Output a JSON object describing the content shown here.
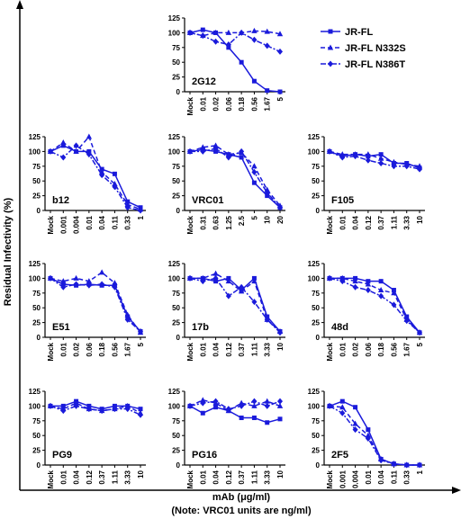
{
  "y_label": "Residual Infectivity (%)",
  "x_label": "mAb (μg/ml)",
  "note": "(Note:  VRC01 units are ng/ml)",
  "chart_data": [
    {
      "type": "line",
      "title": "2G12",
      "categories": [
        "Mock",
        "0.01",
        "0.02",
        "0.06",
        "0.18",
        "0.56",
        "1.67",
        "5"
      ],
      "ylim": [
        0,
        125
      ],
      "yticks": [
        0,
        25,
        50,
        75,
        100,
        125
      ],
      "series": [
        {
          "name": "JR-FL",
          "color": "#1a1adb",
          "values": [
            100,
            105,
            100,
            75,
            50,
            18,
            2,
            0
          ]
        },
        {
          "name": "JR-FL N332S",
          "color": "#1a1adb",
          "values": [
            100,
            95,
            100,
            100,
            100,
            103,
            102,
            98
          ]
        },
        {
          "name": "JR-FL N386T",
          "color": "#1a1adb",
          "values": [
            100,
            95,
            85,
            80,
            100,
            88,
            78,
            68
          ]
        }
      ]
    },
    {
      "type": "line",
      "title": "b12",
      "categories": [
        "Mock",
        "0.001",
        "0.004",
        "0.01",
        "0.04",
        "0.11",
        "0.33",
        "1"
      ],
      "ylim": [
        0,
        125
      ],
      "yticks": [
        0,
        25,
        50,
        75,
        100,
        125
      ],
      "series": [
        {
          "color": "#1a1adb",
          "values": [
            100,
            110,
            100,
            100,
            70,
            62,
            15,
            5
          ]
        },
        {
          "color": "#1a1adb",
          "values": [
            100,
            115,
            100,
            125,
            65,
            45,
            10,
            2
          ]
        },
        {
          "color": "#1a1adb",
          "values": [
            100,
            90,
            110,
            95,
            60,
            40,
            5,
            0
          ]
        }
      ]
    },
    {
      "type": "line",
      "title": "VRC01",
      "categories": [
        "Mock",
        "0.31",
        "0.63",
        "1.25",
        "2.5",
        "5",
        "10",
        "20"
      ],
      "ylim": [
        0,
        125
      ],
      "yticks": [
        0,
        25,
        50,
        75,
        100,
        125
      ],
      "series": [
        {
          "color": "#1a1adb",
          "values": [
            100,
            103,
            100,
            95,
            90,
            47,
            25,
            5
          ]
        },
        {
          "color": "#1a1adb",
          "values": [
            100,
            107,
            110,
            95,
            98,
            75,
            35,
            8
          ]
        },
        {
          "color": "#1a1adb",
          "values": [
            100,
            100,
            105,
            90,
            100,
            65,
            30,
            5
          ]
        }
      ]
    },
    {
      "type": "line",
      "title": "F105",
      "categories": [
        "Mock",
        "0.01",
        "0.04",
        "0.12",
        "0.37",
        "1.11",
        "3.33",
        "10"
      ],
      "ylim": [
        0,
        125
      ],
      "yticks": [
        0,
        25,
        50,
        75,
        100,
        125
      ],
      "series": [
        {
          "color": "#1a1adb",
          "values": [
            100,
            92,
            95,
            92,
            95,
            80,
            80,
            72
          ]
        },
        {
          "color": "#1a1adb",
          "values": [
            100,
            95,
            95,
            95,
            88,
            82,
            78,
            75
          ]
        },
        {
          "color": "#1a1adb",
          "values": [
            100,
            90,
            92,
            85,
            80,
            75,
            75,
            70
          ]
        }
      ]
    },
    {
      "type": "line",
      "title": "E51",
      "categories": [
        "Mock",
        "0.01",
        "0.02",
        "0.06",
        "0.18",
        "0.56",
        "1.67",
        "5"
      ],
      "ylim": [
        0,
        125
      ],
      "yticks": [
        0,
        25,
        50,
        75,
        100,
        125
      ],
      "series": [
        {
          "color": "#1a1adb",
          "values": [
            100,
            90,
            88,
            90,
            88,
            88,
            35,
            10
          ]
        },
        {
          "color": "#1a1adb",
          "values": [
            100,
            95,
            100,
            95,
            110,
            92,
            38,
            8
          ]
        },
        {
          "color": "#1a1adb",
          "values": [
            100,
            85,
            90,
            88,
            90,
            85,
            30,
            10
          ]
        }
      ]
    },
    {
      "type": "line",
      "title": "17b",
      "categories": [
        "Mock",
        "0.01",
        "0.04",
        "0.12",
        "0.37",
        "1.11",
        "3.33",
        "10"
      ],
      "ylim": [
        0,
        125
      ],
      "yticks": [
        0,
        25,
        50,
        75,
        100,
        125
      ],
      "series": [
        {
          "color": "#1a1adb",
          "values": [
            100,
            100,
            95,
            100,
            80,
            100,
            35,
            10
          ]
        },
        {
          "color": "#1a1adb",
          "values": [
            100,
            100,
            108,
            95,
            78,
            95,
            30,
            10
          ]
        },
        {
          "color": "#1a1adb",
          "values": [
            100,
            95,
            100,
            70,
            85,
            60,
            30,
            8
          ]
        }
      ]
    },
    {
      "type": "line",
      "title": "48d",
      "categories": [
        "Mock",
        "0.01",
        "0.02",
        "0.06",
        "0.18",
        "0.56",
        "1.67",
        "5"
      ],
      "ylim": [
        0,
        125
      ],
      "yticks": [
        0,
        25,
        50,
        75,
        100,
        125
      ],
      "series": [
        {
          "color": "#1a1adb",
          "values": [
            100,
            100,
            100,
            95,
            95,
            80,
            35,
            8
          ]
        },
        {
          "color": "#1a1adb",
          "values": [
            100,
            100,
            95,
            90,
            80,
            75,
            30,
            8
          ]
        },
        {
          "color": "#1a1adb",
          "values": [
            100,
            95,
            85,
            80,
            70,
            55,
            28,
            8
          ]
        }
      ]
    },
    {
      "type": "line",
      "title": "PG9",
      "categories": [
        "Mock",
        "0.01",
        "0.04",
        "0.12",
        "0.37",
        "1.11",
        "3.33",
        "10"
      ],
      "ylim": [
        0,
        125
      ],
      "yticks": [
        0,
        25,
        50,
        75,
        100,
        125
      ],
      "series": [
        {
          "color": "#1a1adb",
          "values": [
            100,
            100,
            108,
            100,
            95,
            100,
            100,
            95
          ]
        },
        {
          "color": "#1a1adb",
          "values": [
            100,
            95,
            105,
            95,
            92,
            95,
            100,
            88
          ]
        },
        {
          "color": "#1a1adb",
          "values": [
            100,
            92,
            100,
            95,
            92,
            95,
            95,
            85
          ]
        }
      ]
    },
    {
      "type": "line",
      "title": "PG16",
      "categories": [
        "Mock",
        "0.01",
        "0.04",
        "0.12",
        "0.37",
        "1.11",
        "3.33",
        "10"
      ],
      "ylim": [
        0,
        125
      ],
      "yticks": [
        0,
        25,
        50,
        75,
        100,
        125
      ],
      "series": [
        {
          "color": "#1a1adb",
          "values": [
            100,
            88,
            98,
            92,
            80,
            80,
            72,
            78
          ]
        },
        {
          "color": "#1a1adb",
          "values": [
            100,
            110,
            105,
            92,
            105,
            100,
            108,
            100
          ]
        },
        {
          "color": "#1a1adb",
          "values": [
            100,
            105,
            108,
            95,
            100,
            108,
            100,
            108
          ]
        }
      ]
    },
    {
      "type": "line",
      "title": "2F5",
      "categories": [
        "Mock",
        "0.001",
        "0.004",
        "0.01",
        "0.04",
        "0.11",
        "0.33",
        "1"
      ],
      "ylim": [
        0,
        125
      ],
      "yticks": [
        0,
        25,
        50,
        75,
        100,
        125
      ],
      "series": [
        {
          "color": "#1a1adb",
          "values": [
            100,
            108,
            98,
            60,
            10,
            2,
            0,
            0
          ]
        },
        {
          "color": "#1a1adb",
          "values": [
            100,
            98,
            70,
            50,
            10,
            2,
            0,
            0
          ]
        },
        {
          "color": "#1a1adb",
          "values": [
            100,
            88,
            60,
            45,
            8,
            2,
            0,
            0
          ]
        }
      ]
    }
  ]
}
